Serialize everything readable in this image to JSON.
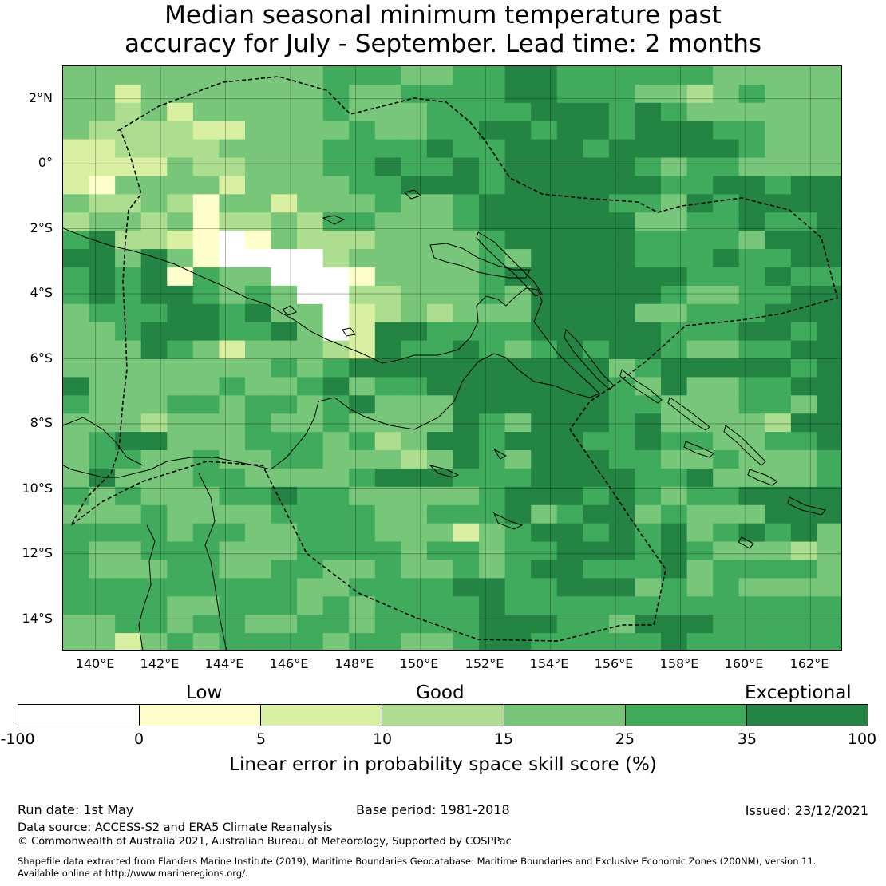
{
  "title": {
    "line1": "Median seasonal minimum temperature past",
    "line2": "accuracy for July - September. Lead time: 2 months"
  },
  "map": {
    "lat_labels": [
      "2°N",
      "0°",
      "2°S",
      "4°S",
      "6°S",
      "8°S",
      "10°S",
      "12°S",
      "14°S"
    ],
    "lon_labels": [
      "140°E",
      "142°E",
      "144°E",
      "146°E",
      "148°E",
      "150°E",
      "152°E",
      "154°E",
      "156°E",
      "158°E",
      "160°E",
      "162°E"
    ],
    "lon_range": [
      139.0,
      163.0
    ],
    "lat_range": [
      -15.0,
      3.0
    ],
    "grid_lines": true,
    "skill_grid": {
      "description": "Each row is one 0.8-degree latitude band from north (top) to south; each character one 0.8-degree longitude cell from west to east. Key: W=-100..0, Y=0..5, L=5..10, M=10..15, N=15..25, G=25..35, D=35..100.",
      "rows": [
        "NNNNNNNNNNGGGNNGGDDGGGGGGNNNNN",
        "NNLNNNNNNNGNNGGGGDDGGGNNMNGNNN",
        "NNMNLNNNNNGNNNGGGGDDDGDGNNNNNN",
        "NMMMMLLNNNNGNNGGDDGDDGDDDGGNNN",
        "LLMMMMNNNNGGGGDGGDDDGDDDDDGNNN",
        "LLLLNMMNNNGGDGGDGDDDDDGNGGNNNN",
        "LYNNNNLNNNNGGDDDGDDDDDDGGDDGDD",
        "NMMNMYNNLNNNGNNGDDDDDGGNDGDDDD",
        "MNNMNYMMNMGGNNNGDDDDDDNNGGDGGD",
        "GDMMLYWYNMMMNNNNGDDDDDGGGGNDDD",
        "DDNDNYWWWWMNNNNNGNDDDDGGGDGGDD",
        "GDGDYGNNWWWYNNNNGDDDDDDDGGGDGG",
        "GDGDDGNGNWWMMNNNGNDDDDDGNNGGDD",
        "NGGGDDGDNNWLMNMNNNDDDDNNGGGDDD",
        "NNGDDDGGDNWLDDGGGGDDDDDGGGDDGD",
        "NNNDGNLNNNMLDGGDGNGDGDDGNNGGDD",
        "NNNNNNNNGNGDDDDDDDDDDNGDDDDDGD",
        "DNNNNNGNNGDNGGDDDDDDDGNDNNGGDD",
        "GNNNGGNGGNGDNNNDDDDDDGGNNNGGND",
        "NNNMNNNGNNGNNNNDGNDDDGDNNNNMDD",
        "NGDDNNNGGGNGMNDDGDDDGGDGGNNGGD",
        "NGGNNGNNGGNNNMNDGNDDDGGNNGNNNG",
        "NDNNNGGNNNNGDDDGGGDDDDGGDNNNNG",
        "GNGNNNGGDGGNNNNNGDDDGDGNGGDDDD",
        "NNNGNNNNGGGGNNGGGDNGDDNGNNNDDD",
        "GGGGNGGNNGGGNNNLNGDDGDGDNGDGDN",
        "GNNGGGNNNGGGGNGGNGGDDDGDGNNNMN",
        "GNNNGGNNGGNNGNNGNGDDGGGDNGGGGN",
        "GGGGGGGGGNNGGGGDDGGDDDNGNGNNNN",
        "GGGGNNGGGNGNGGGGDGGGGGGGGGGGGG",
        "NNGGNGGNNGGNGGGGDDDGGNDDDGGGGG",
        "NNLNGNGGGGNGGNNGDDGGGGGDGGGGGG"
      ]
    }
  },
  "legend": {
    "category_labels": [
      "Low",
      "Good",
      "Exceptional"
    ],
    "tick_labels": [
      "-100",
      "0",
      "5",
      "10",
      "15",
      "25",
      "35",
      "100"
    ],
    "colors": [
      "#ffffff",
      "#ffffcc",
      "#d9f0a3",
      "#addd8e",
      "#78c679",
      "#41ab5d",
      "#238443"
    ],
    "title": "Linear error in probability space skill score (%)"
  },
  "footer": {
    "run_date": "Run date: 1st May",
    "base_period": "Base period: 1981-2018",
    "issued": "Issued: 23/12/2021",
    "data_source": "Data source: ACCESS-S2 and ERA5 Climate Reanalysis",
    "copyright": "© Commonwealth of Australia 2021, Australian Bureau of Meteorology, Supported by COSPPac",
    "shapefile_line1": "Shapefile data extracted from Flanders Marine Institute (2019), Maritime Boundaries Geodatabase: Maritime Boundaries and Exclusive Economic Zones (200NM), version 11.",
    "shapefile_line2": "Available online at http://www.marineregions.org/."
  }
}
